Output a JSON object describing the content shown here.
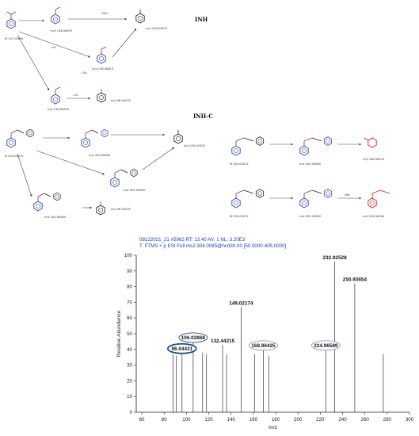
{
  "section_inh": {
    "title": "INH",
    "parent_mass": "M  137.05891",
    "r1": "m/z 138.06619",
    "r2": "m/z 138.06619",
    "r3": "m/z 138.06619",
    "p_top": "m/z 106.02874",
    "p_bottom": "m/z 96.04439",
    "arrow_labels": [
      "+H⁺",
      "-NH₃",
      "-CO",
      "-CH₃"
    ]
  },
  "section_inhc": {
    "title": "INH-C",
    "parent_mass": "M  303.00072",
    "r1": "m/z 304.00800",
    "r2": "m/z 304.00800",
    "r3": "m/z 304.00800",
    "p_top": "m/z 106.02874",
    "p_bottom": "m/z 96.04439",
    "right_row1": {
      "parent": "M  303.00072",
      "ion": "m/z 304.00800",
      "product": "m/z 168.96474"
    },
    "right_row2": {
      "parent": "M  303.00072",
      "ion": "m/z 304.00800",
      "product": "m/z 224.08184",
      "arrow2": "-HBr"
    }
  },
  "spectrum": {
    "header1": "08122021_21 #5962  RT: 13.40   AV: 1   NL: 3.20E3",
    "header2": "T: FTMS + p ESI Full ms2 304.0085@hcd30.00 [50.0000-405.0000]"
  },
  "chart_data": {
    "type": "bar",
    "xlabel": "m/z",
    "ylabel": "Relative Abundance",
    "xlim": [
      55,
      300
    ],
    "ylim": [
      0,
      100
    ],
    "xticks": [
      60,
      80,
      100,
      120,
      140,
      160,
      180,
      200,
      220,
      240,
      260,
      280,
      300
    ],
    "yticks": [
      0,
      10,
      20,
      30,
      40,
      50,
      60,
      70,
      80,
      90,
      100
    ],
    "peaks": [
      {
        "x": 88.0,
        "y": 37
      },
      {
        "x": 91.0,
        "y": 36
      },
      {
        "x": 96.04,
        "y": 38
      },
      {
        "x": 106.03,
        "y": 45
      },
      {
        "x": 114.5,
        "y": 38
      },
      {
        "x": 118.0,
        "y": 37
      },
      {
        "x": 132.44,
        "y": 43
      },
      {
        "x": 136.0,
        "y": 37
      },
      {
        "x": 149.02,
        "y": 67
      },
      {
        "x": 161.0,
        "y": 37
      },
      {
        "x": 168.96,
        "y": 40
      },
      {
        "x": 174.0,
        "y": 36
      },
      {
        "x": 224.97,
        "y": 40
      },
      {
        "x": 232.93,
        "y": 96
      },
      {
        "x": 250.94,
        "y": 82
      },
      {
        "x": 276.5,
        "y": 37
      }
    ],
    "peak_labels": [
      {
        "x": 96.04,
        "y": 38,
        "text": "96.04431",
        "circled": true,
        "ring": "#1b4f8a",
        "thick": true
      },
      {
        "x": 106.03,
        "y": 45,
        "text": "106.02868",
        "circled": true,
        "ring": "#1b4f8a",
        "thick": false
      },
      {
        "x": 132.44,
        "y": 43,
        "text": "132.44215",
        "circled": false
      },
      {
        "x": 149.02,
        "y": 67,
        "text": "149.02174",
        "circled": false
      },
      {
        "x": 168.96,
        "y": 40,
        "text": "168.96425",
        "circled": true,
        "ring": "#8a9ab0",
        "thick": false
      },
      {
        "x": 224.97,
        "y": 40,
        "text": "224.96589",
        "circled": true,
        "ring": "#8a9ab0",
        "thick": false
      },
      {
        "x": 232.93,
        "y": 96,
        "text": "232.92528",
        "circled": false
      },
      {
        "x": 250.94,
        "y": 82,
        "text": "250.93654",
        "circled": false
      }
    ]
  }
}
